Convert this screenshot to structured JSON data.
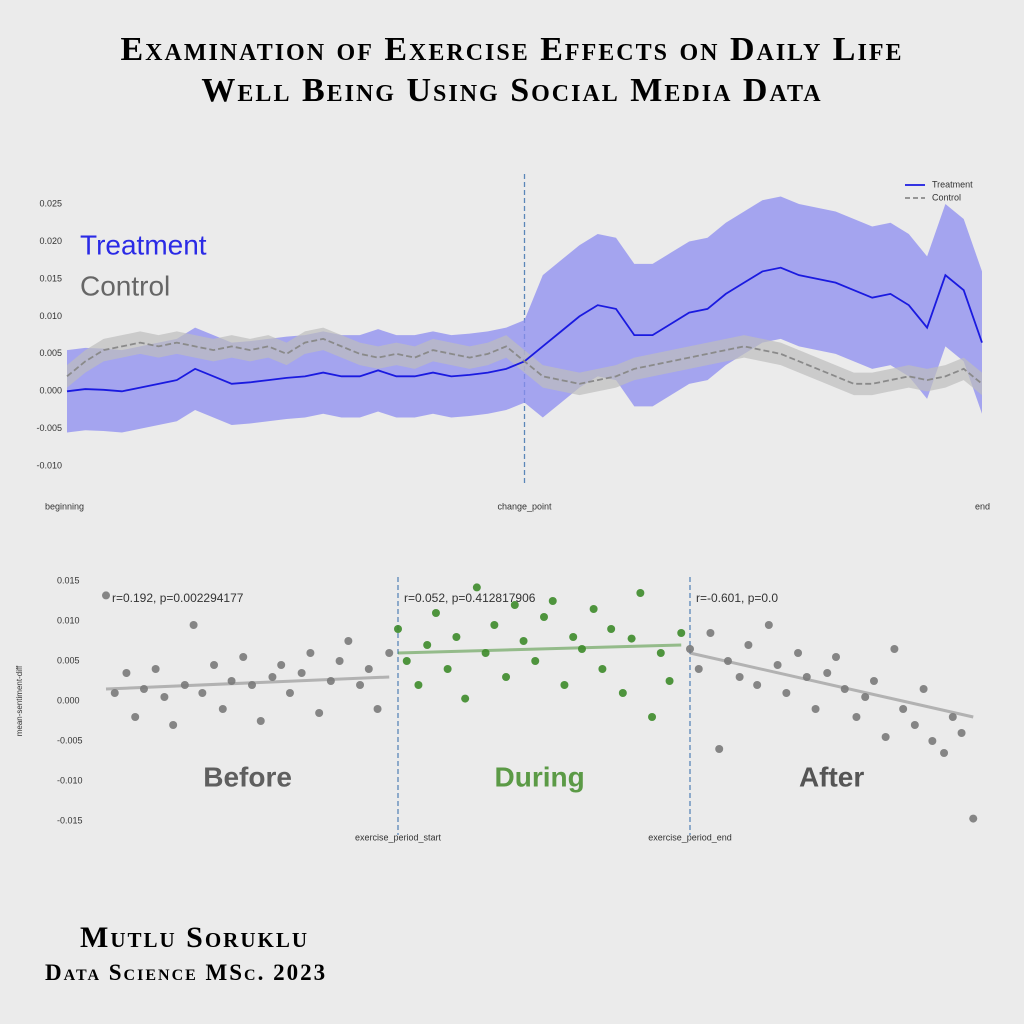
{
  "header": {
    "title_line1": "Examination of Exercise Effects on Daily Life",
    "title_line2": "Well Being Using Social Media Data"
  },
  "chart_data": [
    {
      "type": "line",
      "x": [
        0,
        2,
        4,
        6,
        8,
        10,
        12,
        14,
        16,
        18,
        20,
        22,
        24,
        26,
        28,
        30,
        32,
        34,
        36,
        38,
        40,
        42,
        44,
        46,
        48,
        50,
        52,
        54,
        56,
        58,
        60,
        62,
        64,
        66,
        68,
        70,
        72,
        74,
        76,
        78,
        80,
        82,
        84,
        86,
        88,
        90,
        92,
        94,
        96,
        98,
        100
      ],
      "xlim": [
        0,
        100
      ],
      "xticks": [
        {
          "value": 0,
          "label": "beginning"
        },
        {
          "value": 50,
          "label": "change_point"
        },
        {
          "value": 100,
          "label": "end"
        }
      ],
      "vlines": [
        50
      ],
      "ylim": [
        -0.0125,
        0.029
      ],
      "yticks": [
        {
          "value": -0.01,
          "label": "-0.010"
        },
        -0.005,
        {
          "value": 0,
          "label": "0.000"
        },
        0.005,
        {
          "value": 0.01,
          "label": "0.010"
        },
        0.015,
        {
          "value": 0.02,
          "label": "0.020"
        },
        0.025
      ],
      "legend": "upper right",
      "series": [
        {
          "name": "Treatment",
          "color": "#1a1ae0",
          "band_color": "#8c8cf0",
          "label_color": "#2a2ae6",
          "style": "solid",
          "values": [
            0.0,
            0.0003,
            0.0002,
            0.0,
            0.0005,
            0.001,
            0.0015,
            0.003,
            0.002,
            0.001,
            0.0012,
            0.0015,
            0.0018,
            0.002,
            0.0025,
            0.002,
            0.002,
            0.0028,
            0.002,
            0.002,
            0.0025,
            0.002,
            0.0022,
            0.0025,
            0.003,
            0.004,
            0.006,
            0.008,
            0.01,
            0.0115,
            0.011,
            0.0075,
            0.0075,
            0.009,
            0.0105,
            0.011,
            0.013,
            0.0145,
            0.016,
            0.0165,
            0.0155,
            0.015,
            0.0145,
            0.0135,
            0.0125,
            0.013,
            0.0115,
            0.0085,
            0.0155,
            0.0135,
            0.0065
          ],
          "ci": [
            0.0055,
            0.0055,
            0.0055,
            0.0055,
            0.0055,
            0.0055,
            0.0055,
            0.0055,
            0.0055,
            0.0055,
            0.0055,
            0.0055,
            0.0055,
            0.0055,
            0.0055,
            0.0055,
            0.0055,
            0.0055,
            0.0055,
            0.0055,
            0.0055,
            0.0055,
            0.0055,
            0.0055,
            0.0055,
            0.0055,
            0.0095,
            0.0095,
            0.0095,
            0.0095,
            0.0095,
            0.0095,
            0.0095,
            0.0095,
            0.0095,
            0.0095,
            0.0095,
            0.0095,
            0.0095,
            0.0095,
            0.0095,
            0.0095,
            0.0095,
            0.0095,
            0.0095,
            0.0095,
            0.0095,
            0.0095,
            0.0095,
            0.0095,
            0.0095
          ]
        },
        {
          "name": "Control",
          "color": "#8a8a8a",
          "band_color": "#bdbdbd",
          "label_color": "#666666",
          "style": "dashed",
          "values": [
            0.002,
            0.004,
            0.0055,
            0.006,
            0.0065,
            0.006,
            0.0065,
            0.006,
            0.0055,
            0.006,
            0.0055,
            0.006,
            0.005,
            0.0065,
            0.007,
            0.006,
            0.005,
            0.0045,
            0.005,
            0.0045,
            0.0055,
            0.005,
            0.0045,
            0.005,
            0.006,
            0.004,
            0.002,
            0.0015,
            0.001,
            0.0015,
            0.002,
            0.003,
            0.0035,
            0.004,
            0.0045,
            0.005,
            0.0055,
            0.006,
            0.0055,
            0.005,
            0.004,
            0.003,
            0.002,
            0.001,
            0.001,
            0.0015,
            0.002,
            0.0015,
            0.002,
            0.003,
            0.001
          ],
          "ci": [
            0.0015,
            0.0015,
            0.0015,
            0.0015,
            0.0015,
            0.0015,
            0.0015,
            0.0015,
            0.0015,
            0.0015,
            0.0015,
            0.0015,
            0.0015,
            0.0015,
            0.0015,
            0.0015,
            0.0015,
            0.0015,
            0.0015,
            0.0015,
            0.0015,
            0.0015,
            0.0015,
            0.0015,
            0.0015,
            0.0015,
            0.0015,
            0.0015,
            0.0015,
            0.0015,
            0.0015,
            0.0015,
            0.0015,
            0.0015,
            0.0015,
            0.0015,
            0.0015,
            0.0015,
            0.0015,
            0.0015,
            0.0015,
            0.0015,
            0.0015,
            0.0015,
            0.0015,
            0.0015,
            0.0015,
            0.0015,
            0.0015,
            0.0015,
            0.0015
          ]
        }
      ]
    },
    {
      "type": "scatter",
      "ylabel": "mean-sentiment-diff",
      "xlim": [
        0,
        300
      ],
      "xticks": [
        {
          "value": 100,
          "label": "exercise_period_start"
        },
        {
          "value": 200,
          "label": "exercise_period_end"
        }
      ],
      "vlines": [
        100,
        200
      ],
      "ylim": [
        -0.0155,
        0.0155
      ],
      "yticks": [
        {
          "value": -0.015,
          "label": "-0.015"
        },
        {
          "value": -0.01,
          "label": "-0.010"
        },
        -0.005,
        {
          "value": 0,
          "label": "0.000"
        },
        0.005,
        {
          "value": 0.01,
          "label": "0.010"
        },
        0.015
      ],
      "series": [
        {
          "name": "Before",
          "color": "#7a7a7a",
          "label_color": "#5f5f5f",
          "annotation": "r=0.192, p=0.002294177",
          "trend": [
            0.0015,
            0.003
          ],
          "x": [
            0,
            3,
            7,
            10,
            13,
            17,
            20,
            23,
            27,
            30,
            33,
            37,
            40,
            43,
            47,
            50,
            53,
            57,
            60,
            63,
            67,
            70,
            73,
            77,
            80,
            83,
            87,
            90,
            93,
            97
          ],
          "values": [
            0.0132,
            0.001,
            0.0035,
            -0.002,
            0.0015,
            0.004,
            0.0005,
            -0.003,
            0.002,
            0.0095,
            0.001,
            0.0045,
            -0.001,
            0.0025,
            0.0055,
            0.002,
            -0.0025,
            0.003,
            0.0045,
            0.001,
            0.0035,
            0.006,
            -0.0015,
            0.0025,
            0.005,
            0.0075,
            0.002,
            0.004,
            -0.001,
            0.006
          ]
        },
        {
          "name": "During",
          "color": "#3d8b2a",
          "label_color": "#5b9a46",
          "annotation": "r=0.052, p=0.412817906",
          "trend": [
            0.006,
            0.007
          ],
          "x": [
            100,
            103,
            107,
            110,
            113,
            117,
            120,
            123,
            127,
            130,
            133,
            137,
            140,
            143,
            147,
            150,
            153,
            157,
            160,
            163,
            167,
            170,
            173,
            177,
            180,
            183,
            187,
            190,
            193,
            197
          ],
          "values": [
            0.009,
            0.005,
            0.002,
            0.007,
            0.011,
            0.004,
            0.008,
            0.0003,
            0.0142,
            0.006,
            0.0095,
            0.003,
            0.012,
            0.0075,
            0.005,
            0.0105,
            0.0125,
            0.002,
            0.008,
            0.0065,
            0.0115,
            0.004,
            0.009,
            0.001,
            0.0078,
            0.0135,
            -0.002,
            0.006,
            0.0025,
            0.0085
          ]
        },
        {
          "name": "After",
          "color": "#7a7a7a",
          "label_color": "#555555",
          "annotation": "r=-0.601, p=0.0",
          "trend": [
            0.006,
            -0.002
          ],
          "x": [
            200,
            203,
            207,
            210,
            213,
            217,
            220,
            223,
            227,
            230,
            233,
            237,
            240,
            243,
            247,
            250,
            253,
            257,
            260,
            263,
            267,
            270,
            273,
            277,
            280,
            283,
            287,
            290,
            293,
            297
          ],
          "values": [
            0.0065,
            0.004,
            0.0085,
            -0.006,
            0.005,
            0.003,
            0.007,
            0.002,
            0.0095,
            0.0045,
            0.001,
            0.006,
            0.003,
            -0.001,
            0.0035,
            0.0055,
            0.0015,
            -0.002,
            0.0005,
            0.0025,
            -0.0045,
            0.0065,
            -0.001,
            -0.003,
            0.0015,
            -0.005,
            -0.0065,
            -0.002,
            -0.004,
            -0.0147
          ]
        }
      ]
    }
  ],
  "footer": {
    "author": "Mutlu Soruklu",
    "program": "Data Science MSc. 2023"
  }
}
